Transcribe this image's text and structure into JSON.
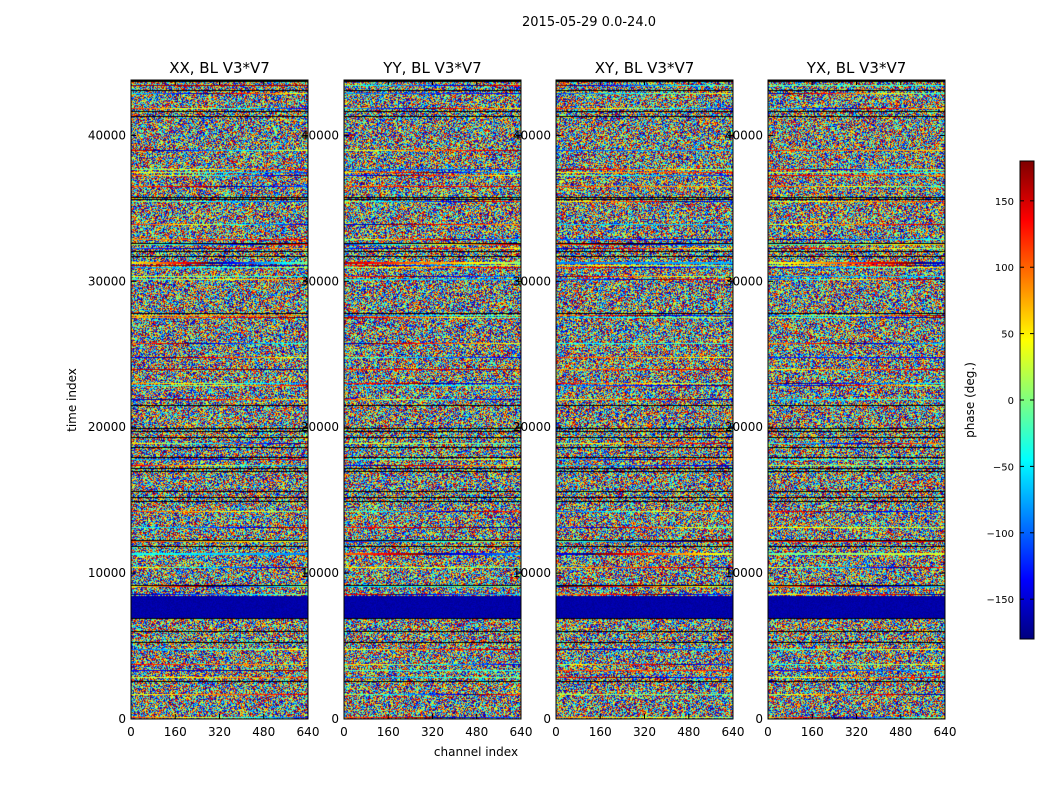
{
  "figure": {
    "suptitle": "2015-05-29 0.0-24.0"
  },
  "chart_data": {
    "type": "heatmap",
    "suptitle": "2015-05-29 0.0-24.0",
    "panels": [
      {
        "id": "XX",
        "title": "XX, BL V3*V7"
      },
      {
        "id": "YY",
        "title": "YY, BL V3*V7"
      },
      {
        "id": "XY",
        "title": "XY, BL V3*V7"
      },
      {
        "id": "YX",
        "title": "YX, BL V3*V7"
      }
    ],
    "xlabel": "channel index",
    "ylabel": "time index",
    "xlim": [
      0,
      640
    ],
    "ylim": [
      0,
      43800
    ],
    "xticks": [
      0,
      160,
      320,
      480,
      640
    ],
    "yticks": [
      0,
      10000,
      20000,
      30000,
      40000
    ],
    "colorbar": {
      "label": "phase (deg.)",
      "range": [
        -180,
        180
      ],
      "ticks": [
        -150,
        -100,
        -50,
        0,
        50,
        100,
        150
      ],
      "colormap": "jet",
      "colors": [
        "#00007f",
        "#0000ff",
        "#007fff",
        "#00ffff",
        "#7fff7f",
        "#ffff00",
        "#ff7f00",
        "#ff0000",
        "#7f0000"
      ]
    },
    "grid": false,
    "gap_rows_color": "#000000"
  }
}
